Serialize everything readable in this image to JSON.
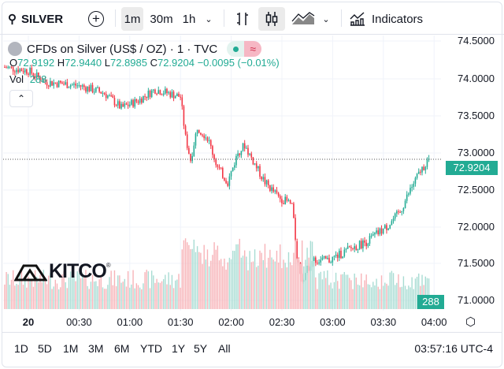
{
  "toolbar": {
    "symbol": "SILVER",
    "intervals": [
      "1m",
      "30m",
      "1h"
    ],
    "active_interval": "1m",
    "indicators": "Indicators"
  },
  "legend": {
    "title": "CFDs on Silver (US$ / OZ) · 1 · TVC",
    "O": "72.9192",
    "H": "72.9440",
    "L": "72.8985",
    "C": "72.9204",
    "change": "−0.0095 (−0.01%)",
    "vol_label": "Vol",
    "vol": "288"
  },
  "price_axis": [
    "74.5000",
    "74.0000",
    "73.5000",
    "73.0000",
    "72.5000",
    "72.0000",
    "71.5000",
    "71.0000"
  ],
  "current_price": "72.9204",
  "current_volume": "288",
  "time_axis": [
    "20",
    "00:30",
    "01:00",
    "01:30",
    "02:00",
    "02:30",
    "03:00",
    "03:30",
    "04:00"
  ],
  "ranges": [
    "1D",
    "5D",
    "1M",
    "3M",
    "6M",
    "YTD",
    "1Y",
    "5Y",
    "All"
  ],
  "clock": "03:57:16 UTC-4",
  "logo": "KITCO",
  "colors": {
    "up": "#22ab94",
    "down": "#f23645",
    "up_vol": "#a8dcd3",
    "down_vol": "#f7b3b8"
  },
  "chart_data": {
    "type": "candlestick",
    "x_unit": "minutes from 00:00",
    "keypoints": [
      [
        -15,
        74.15
      ],
      [
        0,
        74.1
      ],
      [
        10,
        73.95
      ],
      [
        30,
        73.9
      ],
      [
        45,
        73.8
      ],
      [
        55,
        73.6
      ],
      [
        65,
        73.7
      ],
      [
        75,
        73.85
      ],
      [
        90,
        73.75
      ],
      [
        93,
        73.2
      ],
      [
        96,
        72.9
      ],
      [
        100,
        73.35
      ],
      [
        106,
        73.2
      ],
      [
        112,
        72.8
      ],
      [
        118,
        72.6
      ],
      [
        124,
        73.0
      ],
      [
        128,
        73.1
      ],
      [
        135,
        72.8
      ],
      [
        140,
        72.6
      ],
      [
        148,
        72.4
      ],
      [
        156,
        72.3
      ],
      [
        159,
        71.6
      ],
      [
        162,
        71.3
      ],
      [
        168,
        71.55
      ],
      [
        178,
        71.55
      ],
      [
        190,
        71.7
      ],
      [
        200,
        71.8
      ],
      [
        212,
        72.0
      ],
      [
        220,
        72.2
      ],
      [
        226,
        72.5
      ],
      [
        232,
        72.75
      ],
      [
        237,
        72.92
      ]
    ],
    "ylim": [
      70.9,
      74.6
    ]
  }
}
